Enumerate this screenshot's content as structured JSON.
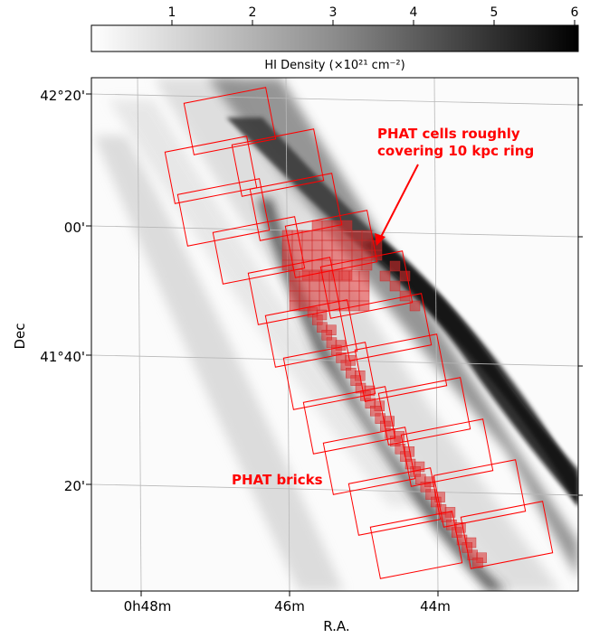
{
  "colorbar": {
    "label": "HI Density (×10²¹ cm⁻²)",
    "ticks": [
      "1",
      "2",
      "3",
      "4",
      "5",
      "6"
    ]
  },
  "axes": {
    "xlabel": "R.A.",
    "ylabel": "Dec",
    "x_ticks": [
      "0h48m",
      "46m",
      "44m"
    ],
    "y_ticks": [
      "42°20'",
      "00'",
      "41°40'",
      "20'"
    ]
  },
  "annotations": {
    "cells": [
      "PHAT cells roughly",
      "covering 10 kpc ring"
    ],
    "bricks": "PHAT bricks"
  },
  "colors": {
    "annotation": "#ff0000",
    "bricks": "#ff0000",
    "cells": "#e03030"
  }
}
